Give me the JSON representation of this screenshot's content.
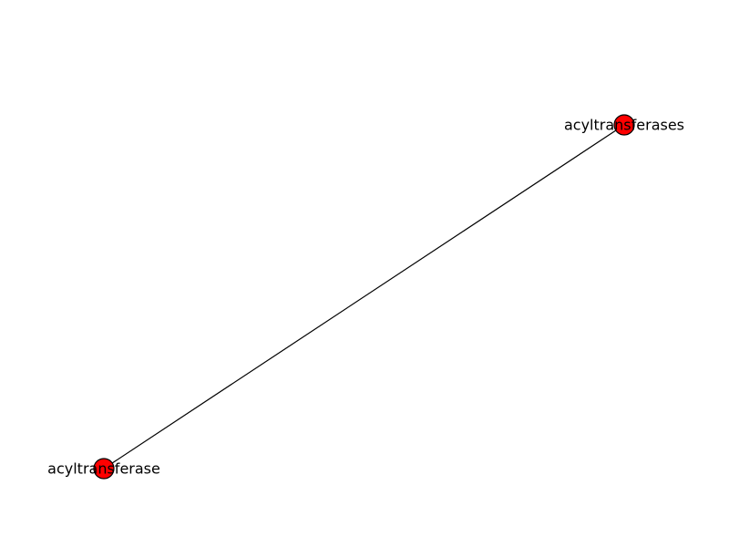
{
  "graph": {
    "nodes": [
      {
        "id": "acyltransferases",
        "label": "acyltransferases"
      },
      {
        "id": "acyltransferase",
        "label": "acyltransferase"
      }
    ],
    "edges": [
      {
        "source": "acyltransferases",
        "target": "acyltransferase"
      }
    ],
    "colors": {
      "node_fill": "#ff0000",
      "node_stroke": "#000000",
      "edge": "#000000"
    }
  }
}
